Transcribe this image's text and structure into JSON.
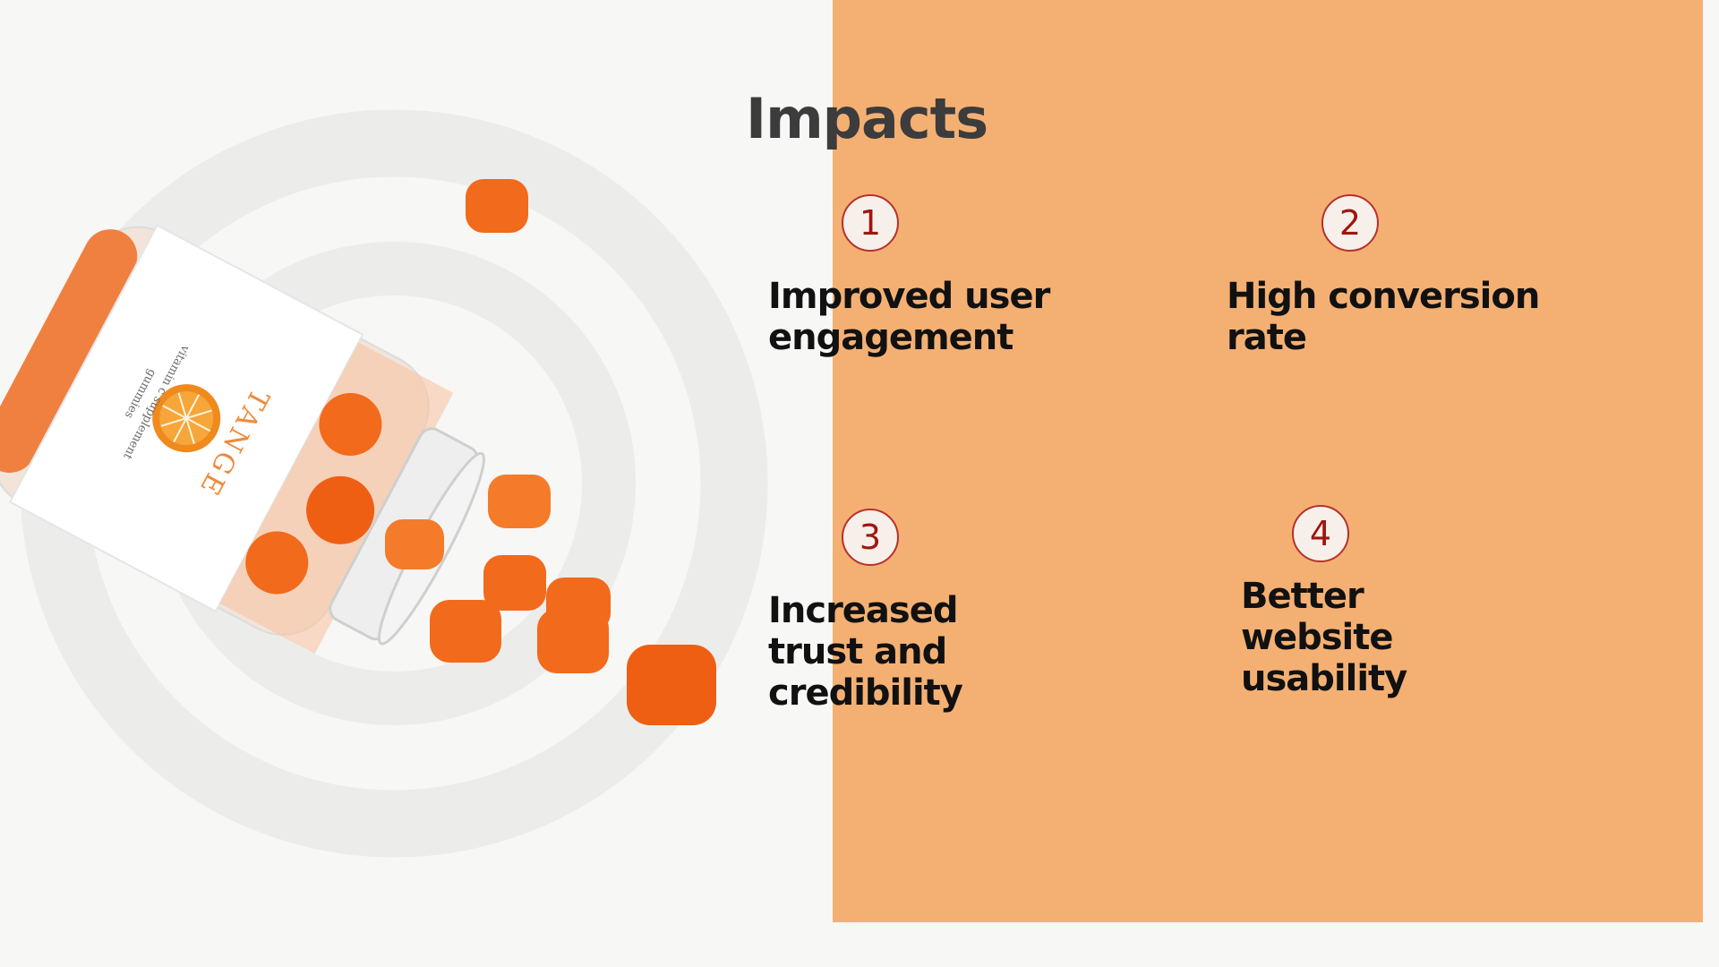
{
  "slide": {
    "title": "Impacts",
    "items": [
      {
        "number": "1",
        "label": "Improved user\nengagement"
      },
      {
        "number": "2",
        "label": "High conversion\nrate"
      },
      {
        "number": "3",
        "label": "Increased\ntrust and\ncredibility"
      },
      {
        "number": "4",
        "label": "Better\nwebsite\nusability"
      }
    ]
  },
  "product": {
    "brand": "TANGE",
    "line1": "vitamin c supplement",
    "line2": "gummies"
  },
  "colors": {
    "accent": "#f4b073",
    "background": "#f7f7f5",
    "number": "#a01510",
    "gummy": "#f26a1b"
  }
}
